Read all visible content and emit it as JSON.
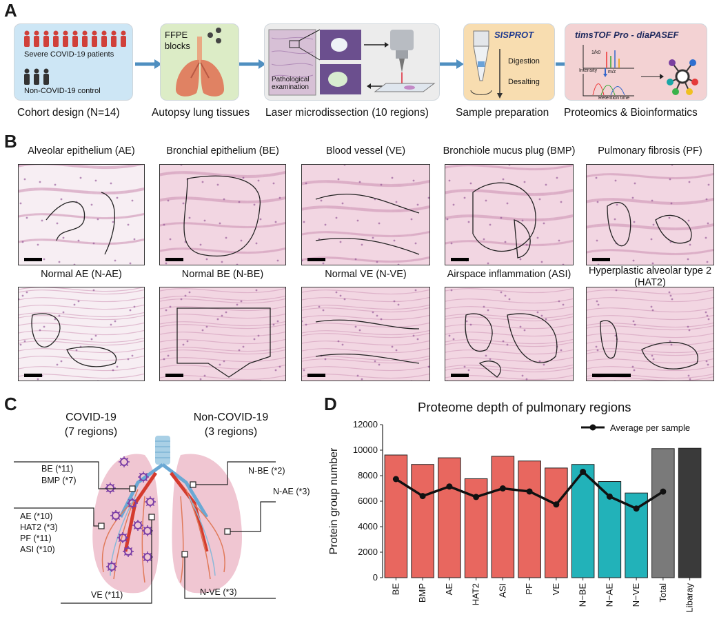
{
  "panels": {
    "a": "A",
    "b": "B",
    "c": "C",
    "d": "D"
  },
  "panel_a": {
    "cohort": {
      "severe": "Severe COVID-19 patients",
      "control": "Non-COVID-19 control",
      "caption": "Cohort design (N=14)"
    },
    "autopsy": {
      "ffpe": "FFPE",
      "blocks": "blocks",
      "caption": "Autopsy lung tissues"
    },
    "lmd": {
      "path1": "Pathological",
      "path2": "examination",
      "caption": "Laser microdissection (10 regions)"
    },
    "prep": {
      "brand": "SISPROT",
      "digestion": "Digestion",
      "desalting": "Desalting",
      "caption": "Sample preparation"
    },
    "prot": {
      "title": "timsTOF Pro - diaPASEF",
      "intensity": "Intensity",
      "k0": "1/k0",
      "mz": "m/z",
      "rt": "Retention time",
      "caption": "Proteomics & Bioinformatics"
    }
  },
  "panel_b": {
    "titles": [
      "Alveolar epithelium (AE)",
      "Bronchial epithelium (BE)",
      "Blood vessel (VE)",
      "Bronchiole mucus plug (BMP)",
      "Pulmonary fibrosis (PF)",
      "Normal AE (N-AE)",
      "Normal BE (N-BE)",
      "Normal VE (N-VE)",
      "Airspace inflammation (ASI)",
      "Hyperplastic alveolar type 2",
      "(HAT2)"
    ]
  },
  "panel_c": {
    "covid_head": "COVID-19",
    "covid_sub": "(7 regions)",
    "non_head": "Non-COVID-19",
    "non_sub": "(3 regions)",
    "labels": {
      "be": "BE (*11)",
      "bmp": "BMP (*7)",
      "ae": "AE (*10)",
      "hat2": "HAT2 (*3)",
      "pf": "PF (*11)",
      "asi": "ASI (*10)",
      "ve": "VE (*11)",
      "nbe": "N-BE (*2)",
      "nae": "N-AE (*3)",
      "nve": "N-VE (*3)"
    }
  },
  "colors": {
    "covid": "#e8675f",
    "normal": "#22b2b9",
    "total": "#7a7a7a",
    "library": "#3a3a3a",
    "arrow": "#4f8fc0"
  },
  "chart_data": {
    "type": "bar",
    "title": "Proteome depth of pulmonary regions",
    "ylabel": "Protein group number",
    "xlabel": "",
    "categories": [
      "BE",
      "BMP",
      "AE",
      "HAT2",
      "ASI",
      "PF",
      "VE",
      "N−BE",
      "N−AE",
      "N−VE",
      "Total",
      "Libaray"
    ],
    "bar_colors": [
      "covid",
      "covid",
      "covid",
      "covid",
      "covid",
      "covid",
      "covid",
      "normal",
      "normal",
      "normal",
      "total",
      "library"
    ],
    "series": [
      {
        "name": "",
        "type": "bar",
        "values": [
          9620,
          8880,
          9400,
          7760,
          9520,
          9150,
          8600,
          8880,
          7540,
          6640,
          10120,
          10150
        ]
      },
      {
        "name": "Average per sample",
        "type": "line",
        "values": [
          7730,
          6400,
          7150,
          6330,
          7000,
          6760,
          5740,
          8300,
          6360,
          5420,
          6750,
          null
        ]
      }
    ],
    "ylim": [
      0,
      12000
    ],
    "yticks": [
      "0",
      "2000",
      "4000",
      "6000",
      "8000",
      "10000",
      "12000"
    ],
    "legend": "top-right",
    "grid": false
  }
}
